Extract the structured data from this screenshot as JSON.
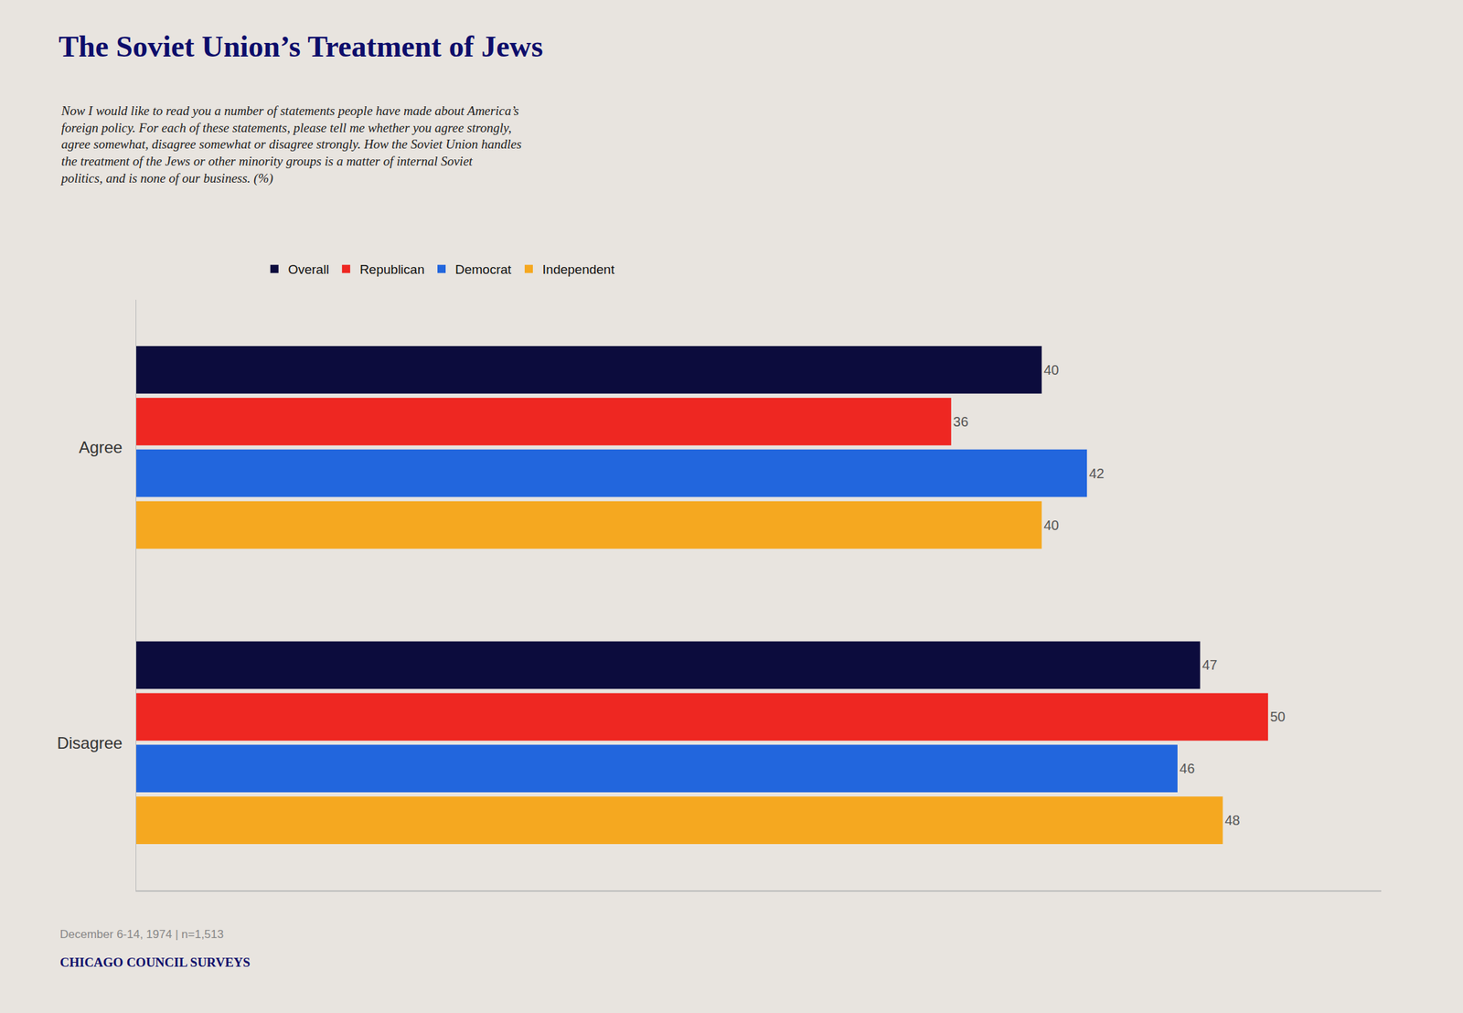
{
  "chart_data": {
    "type": "bar",
    "orientation": "horizontal",
    "title": "The Soviet Union’s Treatment of Jews",
    "subtitle": "Now I would like to read you a number of statements people have made about America’s\nforeign policy. For each of these statements, please tell me whether you agree strongly,\nagree somewhat, disagree somewhat or disagree strongly. How the Soviet Union handles\nthe treatment of the Jews or other minority groups is a matter of internal Soviet\npolitics, and is none of our business. (%)",
    "annotations": [
      "December 6-14, 1974 | n=1,513",
      "CHICAGO COUNCIL SURVEYS"
    ],
    "categories": [
      "Agree",
      "Disagree"
    ],
    "series": [
      {
        "name": "Overall",
        "color": "#0c0c3d",
        "values": [
          40,
          47
        ]
      },
      {
        "name": "Republican",
        "color": "#ee2722",
        "values": [
          36,
          50
        ]
      },
      {
        "name": "Democrat",
        "color": "#2266dd",
        "values": [
          42,
          46
        ]
      },
      {
        "name": "Independent",
        "color": "#f5a820",
        "values": [
          40,
          48
        ]
      }
    ],
    "xlim": [
      0,
      55
    ],
    "tick_labels": "y",
    "data_labels": true,
    "grid": false,
    "legend": "top"
  }
}
